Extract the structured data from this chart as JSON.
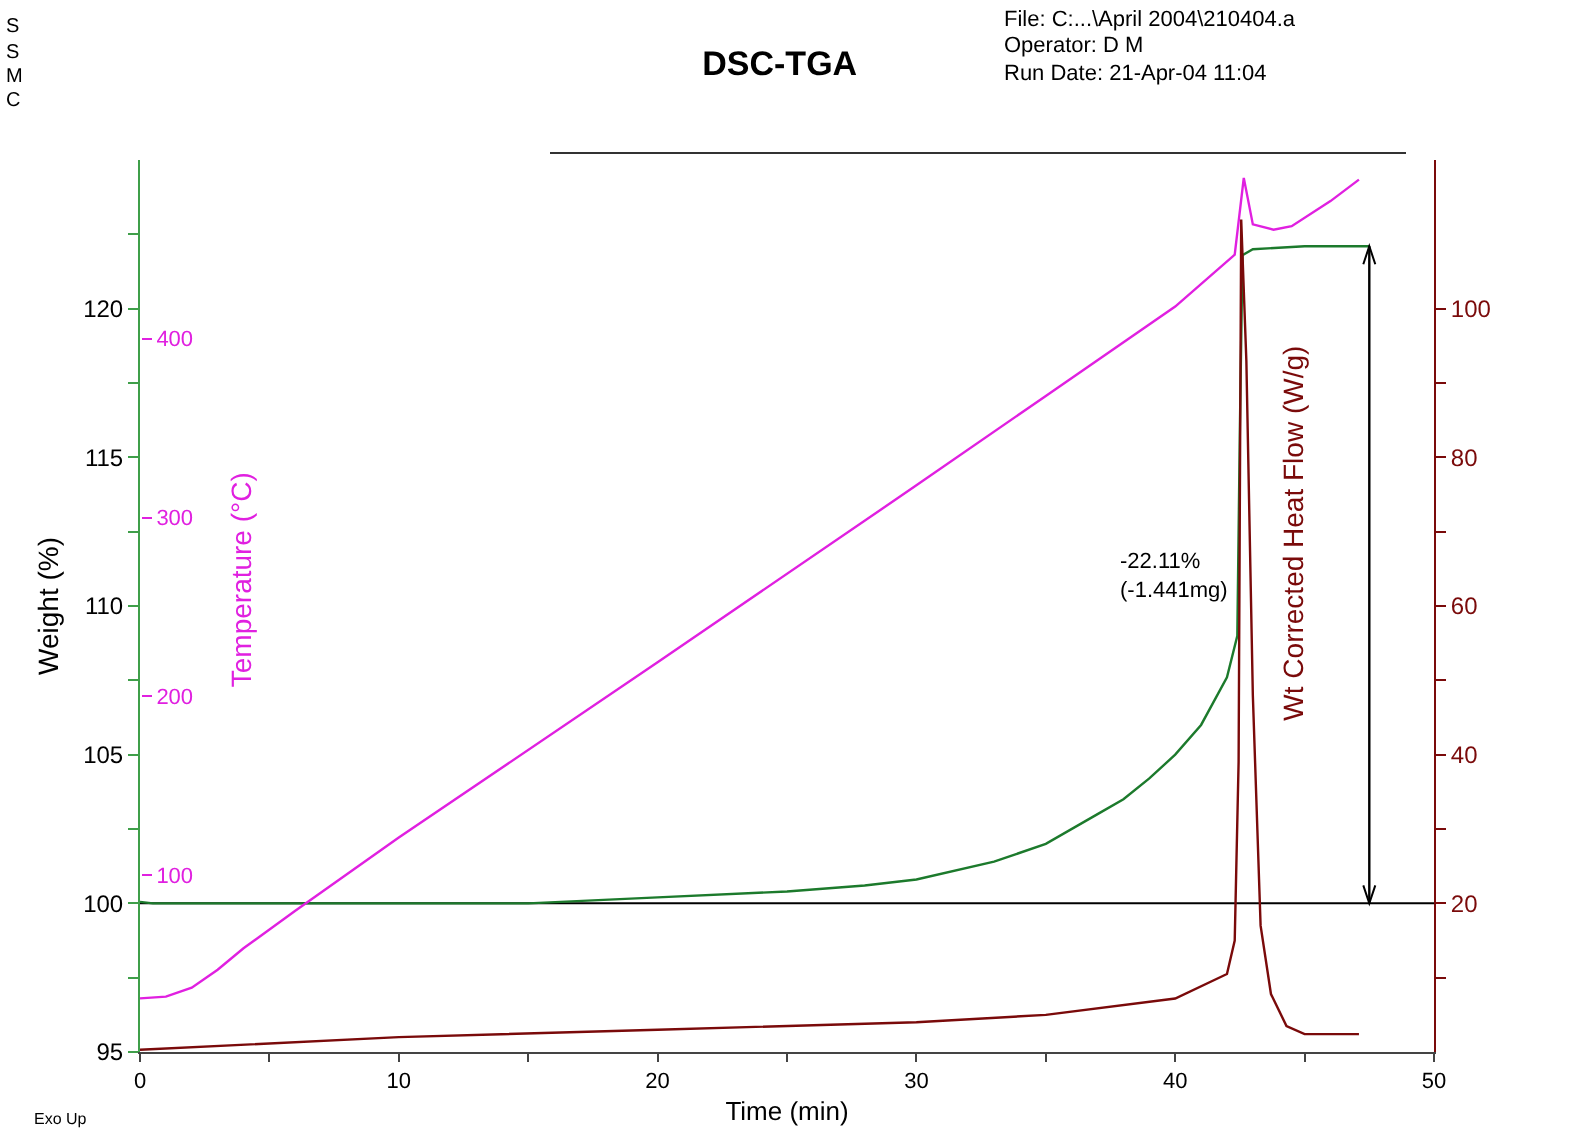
{
  "chart_data": {
    "type": "line",
    "title": "DSC-TGA",
    "xlabel": "Time (min)",
    "ylabel": "Weight (%)",
    "y2label": "Temperature (°C)",
    "y3label": "Wt Corrected Heat Flow (W/g)",
    "xlim": [
      0,
      50
    ],
    "xticks": [
      0,
      {
        "value": 5,
        "label": null
      },
      10,
      {
        "value": 15,
        "label": null
      },
      20,
      {
        "value": 25,
        "label": null
      },
      30,
      {
        "value": 35,
        "label": null
      },
      40,
      {
        "value": 45,
        "label": null
      },
      50
    ],
    "ylim": [
      95,
      125
    ],
    "yticks": [
      95,
      {
        "value": 97.5,
        "label": null
      },
      100,
      {
        "value": 102.5,
        "label": null
      },
      105,
      {
        "value": 107.5,
        "label": null
      },
      110,
      {
        "value": 112.5,
        "label": null
      },
      115,
      {
        "value": 117.5,
        "label": null
      },
      120,
      {
        "value": 122.5,
        "label": null
      }
    ],
    "y2lim": [
      1,
      500
    ],
    "y2ticks": [
      100,
      200,
      300,
      400
    ],
    "y3lim": [
      0,
      120
    ],
    "y3ticks": [
      {
        "value": 10,
        "label": null
      },
      20,
      {
        "value": 30,
        "label": null
      },
      40,
      {
        "value": 50,
        "label": null
      },
      60,
      {
        "value": 70,
        "label": null
      },
      80,
      {
        "value": 90,
        "label": null
      },
      100
    ],
    "marker": "none",
    "line_style": "solid",
    "grid": false,
    "series": [
      {
        "axis": "y",
        "color": "#1c7a2c",
        "x": [
          0,
          0.5,
          5,
          10,
          15,
          20,
          25,
          28,
          30,
          33,
          35,
          37,
          38,
          39,
          40,
          41,
          42,
          42.4,
          42.5,
          42.6,
          43,
          45,
          47.5
        ],
        "values": [
          100.05,
          100,
          100,
          100,
          100,
          100.2,
          100.4,
          100.6,
          100.8,
          101.4,
          102,
          103,
          103.5,
          104.2,
          105,
          106,
          107.6,
          109,
          116,
          121.8,
          122,
          122.1,
          122.1
        ]
      },
      {
        "axis": "y2",
        "color": "#e020e0",
        "x": [
          0,
          1,
          2,
          3,
          4,
          6,
          10,
          20,
          30,
          35,
          40,
          42.3,
          42.65,
          43,
          43.8,
          44.5,
          46,
          47.1
        ],
        "values": [
          31,
          32,
          37,
          47,
          59,
          80,
          121,
          219,
          318,
          368,
          418,
          447,
          490,
          464,
          461,
          463,
          477,
          489
        ]
      },
      {
        "axis": "y",
        "color": "#000000",
        "x": [
          47.5,
          47.5
        ],
        "values": [
          100,
          122.1
        ]
      },
      {
        "axis": "y3",
        "color": "#7a0a0a",
        "x": [
          0,
          10,
          20,
          30,
          35,
          40,
          42,
          42.3,
          42.45,
          42.55,
          42.75,
          43,
          43.3,
          43.7,
          44.3,
          45,
          47.1
        ],
        "values": [
          0.3,
          2,
          3,
          4,
          5,
          7.2,
          10.5,
          15,
          39,
          112,
          93,
          48,
          17,
          7.8,
          3.5,
          2.4,
          2.4
        ]
      }
    ],
    "ref_lines": [
      {
        "axis": "y",
        "value": 100,
        "color": "#000000"
      }
    ],
    "annotations": [
      {
        "text": "-22.11%\n(-1.441mg)",
        "x": 42.5,
        "y": 111
      },
      "Exo Up",
      "File: C:...\\April 2004\\210404.a",
      "Operator: D M",
      "Run Date: 21-Apr-04 11:04",
      "S",
      "S",
      "M",
      "C"
    ]
  }
}
